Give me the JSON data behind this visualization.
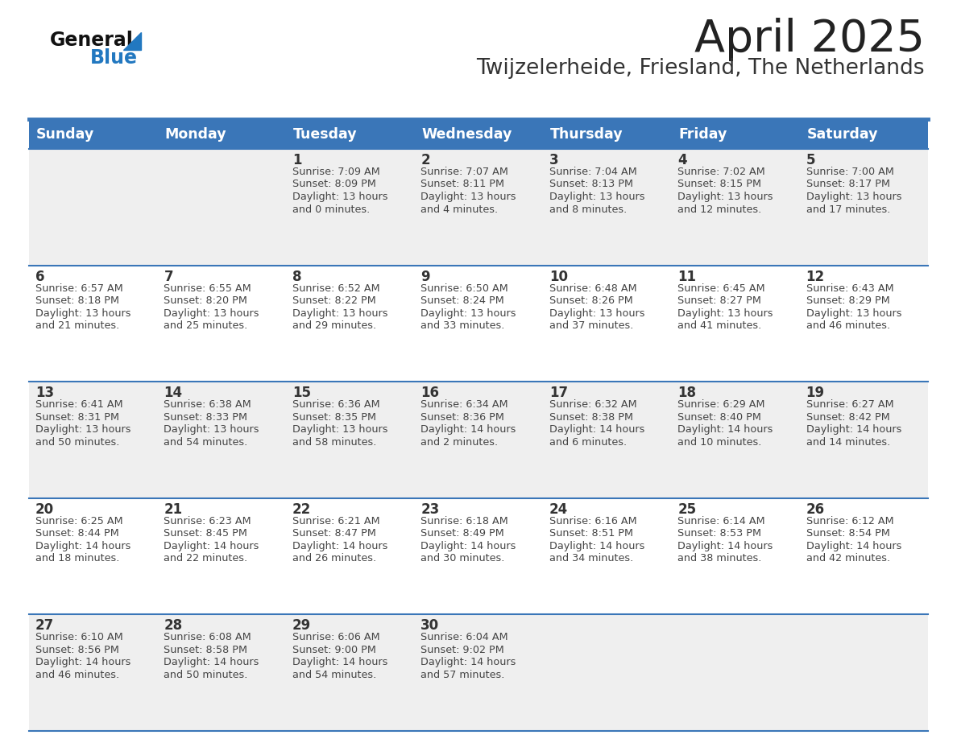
{
  "title": "April 2025",
  "subtitle": "Twijzelerheide, Friesland, The Netherlands",
  "days_of_week": [
    "Sunday",
    "Monday",
    "Tuesday",
    "Wednesday",
    "Thursday",
    "Friday",
    "Saturday"
  ],
  "header_bg": "#3A76B8",
  "header_text": "#FFFFFF",
  "row_bg_odd": "#EFEFEF",
  "row_bg_even": "#FFFFFF",
  "separator_color": "#3A76B8",
  "day_num_color": "#333333",
  "cell_text_color": "#444444",
  "title_color": "#222222",
  "subtitle_color": "#333333",
  "logo_general_color": "#111111",
  "logo_blue_color": "#2278C0",
  "calendar_data": [
    [
      {
        "day": null,
        "sunrise": null,
        "sunset": null,
        "daylight": null
      },
      {
        "day": null,
        "sunrise": null,
        "sunset": null,
        "daylight": null
      },
      {
        "day": 1,
        "sunrise": "7:09 AM",
        "sunset": "8:09 PM",
        "daylight_h": "13 hours",
        "daylight_m": "and 0 minutes."
      },
      {
        "day": 2,
        "sunrise": "7:07 AM",
        "sunset": "8:11 PM",
        "daylight_h": "13 hours",
        "daylight_m": "and 4 minutes."
      },
      {
        "day": 3,
        "sunrise": "7:04 AM",
        "sunset": "8:13 PM",
        "daylight_h": "13 hours",
        "daylight_m": "and 8 minutes."
      },
      {
        "day": 4,
        "sunrise": "7:02 AM",
        "sunset": "8:15 PM",
        "daylight_h": "13 hours",
        "daylight_m": "and 12 minutes."
      },
      {
        "day": 5,
        "sunrise": "7:00 AM",
        "sunset": "8:17 PM",
        "daylight_h": "13 hours",
        "daylight_m": "and 17 minutes."
      }
    ],
    [
      {
        "day": 6,
        "sunrise": "6:57 AM",
        "sunset": "8:18 PM",
        "daylight_h": "13 hours",
        "daylight_m": "and 21 minutes."
      },
      {
        "day": 7,
        "sunrise": "6:55 AM",
        "sunset": "8:20 PM",
        "daylight_h": "13 hours",
        "daylight_m": "and 25 minutes."
      },
      {
        "day": 8,
        "sunrise": "6:52 AM",
        "sunset": "8:22 PM",
        "daylight_h": "13 hours",
        "daylight_m": "and 29 minutes."
      },
      {
        "day": 9,
        "sunrise": "6:50 AM",
        "sunset": "8:24 PM",
        "daylight_h": "13 hours",
        "daylight_m": "and 33 minutes."
      },
      {
        "day": 10,
        "sunrise": "6:48 AM",
        "sunset": "8:26 PM",
        "daylight_h": "13 hours",
        "daylight_m": "and 37 minutes."
      },
      {
        "day": 11,
        "sunrise": "6:45 AM",
        "sunset": "8:27 PM",
        "daylight_h": "13 hours",
        "daylight_m": "and 41 minutes."
      },
      {
        "day": 12,
        "sunrise": "6:43 AM",
        "sunset": "8:29 PM",
        "daylight_h": "13 hours",
        "daylight_m": "and 46 minutes."
      }
    ],
    [
      {
        "day": 13,
        "sunrise": "6:41 AM",
        "sunset": "8:31 PM",
        "daylight_h": "13 hours",
        "daylight_m": "and 50 minutes."
      },
      {
        "day": 14,
        "sunrise": "6:38 AM",
        "sunset": "8:33 PM",
        "daylight_h": "13 hours",
        "daylight_m": "and 54 minutes."
      },
      {
        "day": 15,
        "sunrise": "6:36 AM",
        "sunset": "8:35 PM",
        "daylight_h": "13 hours",
        "daylight_m": "and 58 minutes."
      },
      {
        "day": 16,
        "sunrise": "6:34 AM",
        "sunset": "8:36 PM",
        "daylight_h": "14 hours",
        "daylight_m": "and 2 minutes."
      },
      {
        "day": 17,
        "sunrise": "6:32 AM",
        "sunset": "8:38 PM",
        "daylight_h": "14 hours",
        "daylight_m": "and 6 minutes."
      },
      {
        "day": 18,
        "sunrise": "6:29 AM",
        "sunset": "8:40 PM",
        "daylight_h": "14 hours",
        "daylight_m": "and 10 minutes."
      },
      {
        "day": 19,
        "sunrise": "6:27 AM",
        "sunset": "8:42 PM",
        "daylight_h": "14 hours",
        "daylight_m": "and 14 minutes."
      }
    ],
    [
      {
        "day": 20,
        "sunrise": "6:25 AM",
        "sunset": "8:44 PM",
        "daylight_h": "14 hours",
        "daylight_m": "and 18 minutes."
      },
      {
        "day": 21,
        "sunrise": "6:23 AM",
        "sunset": "8:45 PM",
        "daylight_h": "14 hours",
        "daylight_m": "and 22 minutes."
      },
      {
        "day": 22,
        "sunrise": "6:21 AM",
        "sunset": "8:47 PM",
        "daylight_h": "14 hours",
        "daylight_m": "and 26 minutes."
      },
      {
        "day": 23,
        "sunrise": "6:18 AM",
        "sunset": "8:49 PM",
        "daylight_h": "14 hours",
        "daylight_m": "and 30 minutes."
      },
      {
        "day": 24,
        "sunrise": "6:16 AM",
        "sunset": "8:51 PM",
        "daylight_h": "14 hours",
        "daylight_m": "and 34 minutes."
      },
      {
        "day": 25,
        "sunrise": "6:14 AM",
        "sunset": "8:53 PM",
        "daylight_h": "14 hours",
        "daylight_m": "and 38 minutes."
      },
      {
        "day": 26,
        "sunrise": "6:12 AM",
        "sunset": "8:54 PM",
        "daylight_h": "14 hours",
        "daylight_m": "and 42 minutes."
      }
    ],
    [
      {
        "day": 27,
        "sunrise": "6:10 AM",
        "sunset": "8:56 PM",
        "daylight_h": "14 hours",
        "daylight_m": "and 46 minutes."
      },
      {
        "day": 28,
        "sunrise": "6:08 AM",
        "sunset": "8:58 PM",
        "daylight_h": "14 hours",
        "daylight_m": "and 50 minutes."
      },
      {
        "day": 29,
        "sunrise": "6:06 AM",
        "sunset": "9:00 PM",
        "daylight_h": "14 hours",
        "daylight_m": "and 54 minutes."
      },
      {
        "day": 30,
        "sunrise": "6:04 AM",
        "sunset": "9:02 PM",
        "daylight_h": "14 hours",
        "daylight_m": "and 57 minutes."
      },
      {
        "day": null,
        "sunrise": null,
        "sunset": null,
        "daylight_h": null,
        "daylight_m": null
      },
      {
        "day": null,
        "sunrise": null,
        "sunset": null,
        "daylight_h": null,
        "daylight_m": null
      },
      {
        "day": null,
        "sunrise": null,
        "sunset": null,
        "daylight_h": null,
        "daylight_m": null
      }
    ]
  ]
}
